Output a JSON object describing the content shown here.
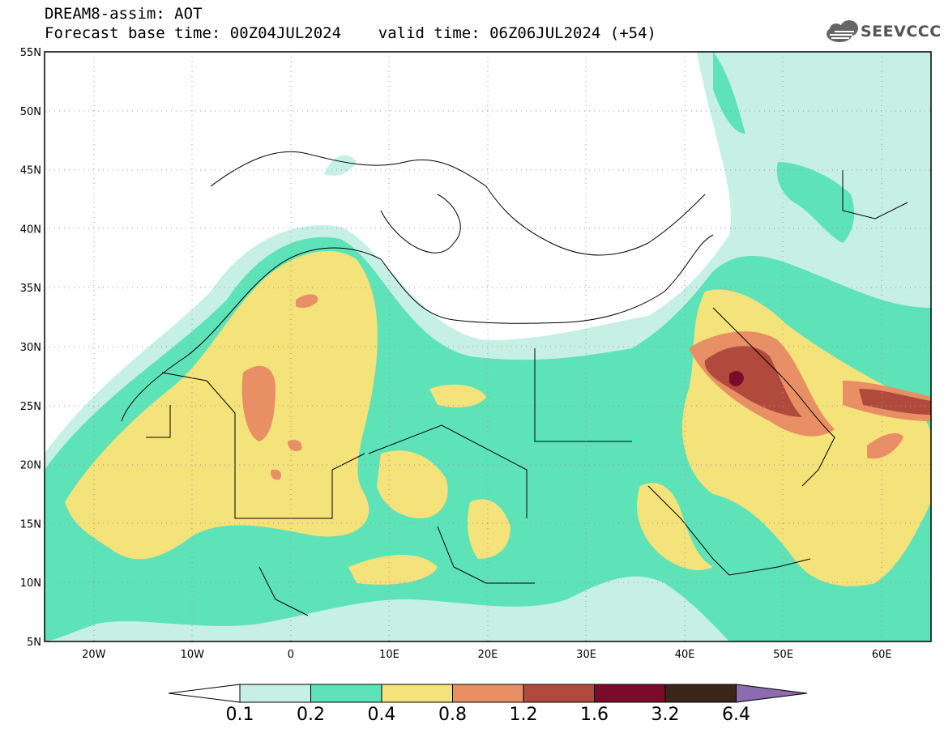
{
  "header": {
    "title_line1": "DREAM8-assim: AOT",
    "title_line2": "Forecast base time: 00Z04JUL2024    valid time: 06Z06JUL2024 (+54)",
    "logo_text": "SEEVCCC"
  },
  "map": {
    "lon_range": [
      -25,
      65
    ],
    "lat_range": [
      5,
      55
    ],
    "lat_ticks": [
      "55N",
      "50N",
      "45N",
      "40N",
      "35N",
      "30N",
      "25N",
      "20N",
      "15N",
      "10N",
      "5N"
    ],
    "lon_ticks": [
      "20W",
      "10W",
      "0",
      "10E",
      "20E",
      "30E",
      "40E",
      "50E",
      "60E"
    ],
    "grid": "dotted"
  },
  "colorbar": {
    "labels": [
      "0.1",
      "0.2",
      "0.4",
      "0.8",
      "1.2",
      "1.6",
      "3.2",
      "6.4"
    ],
    "colors": [
      "#ffffff",
      "#c6f0e4",
      "#5ee2b7",
      "#f4e27a",
      "#e98f65",
      "#b04a3c",
      "#7c0a2a",
      "#3b2418",
      "#8c6bb1"
    ]
  },
  "palette": {
    "lt": "#c6f0e4",
    "gr": "#5ee2b7",
    "ye": "#f4e27a",
    "or": "#e98f65",
    "rd": "#b04a3c",
    "dk": "#7c0a2a"
  }
}
